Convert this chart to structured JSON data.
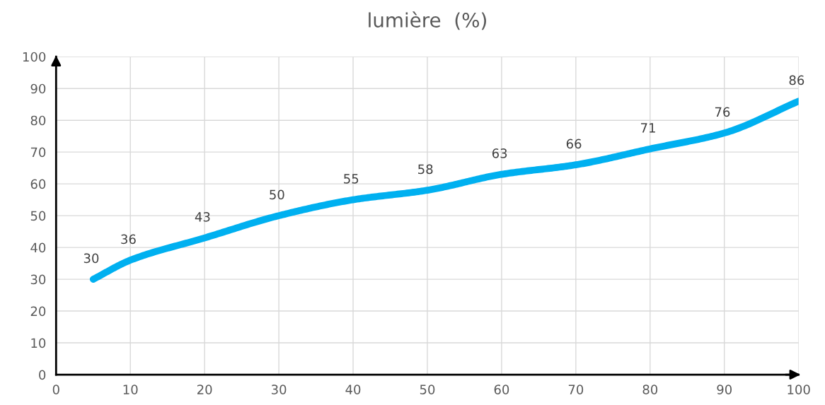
{
  "chart_data": {
    "type": "line",
    "title": "lumière  (%)",
    "x": [
      5,
      10,
      20,
      30,
      40,
      50,
      60,
      70,
      80,
      90,
      100
    ],
    "series": [
      {
        "color": "#00b0f0",
        "values": [
          30,
          36,
          43,
          50,
          55,
          58,
          63,
          66,
          71,
          76,
          86
        ]
      }
    ],
    "xlim": [
      0,
      100
    ],
    "xticks": [
      0,
      10,
      20,
      30,
      40,
      50,
      60,
      70,
      80,
      90,
      100
    ],
    "ylim": [
      0,
      100
    ],
    "yticks": [
      0,
      10,
      20,
      30,
      40,
      50,
      60,
      70,
      80,
      90,
      100
    ],
    "grid": true,
    "data_labels": true,
    "marker": "none",
    "line_style": "solid"
  }
}
